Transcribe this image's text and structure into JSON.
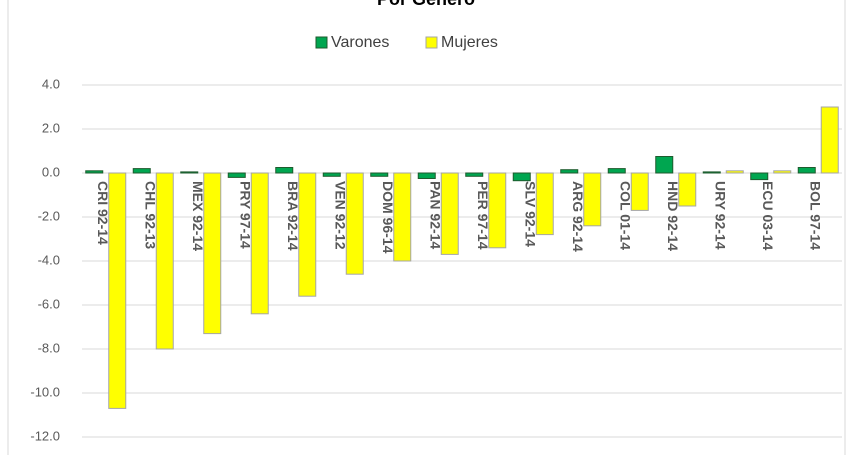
{
  "chart_data": {
    "type": "bar",
    "title": "Por Género",
    "categories": [
      "CRI 92-14",
      "CHL 92-13",
      "MEX 92-14",
      "PRY 97-14",
      "BRA 92-14",
      "VEN 92-12",
      "DOM 96-14",
      "PAN 92-14",
      "PER 97-14",
      "SLV 92-14",
      "ARG 92-14",
      "COL 01-14",
      "HND 92-14",
      "URY 92-14",
      "ECU 03-14",
      "BOL 97-14"
    ],
    "series": [
      {
        "name": "Varones",
        "color": "#00a650",
        "values": [
          0.1,
          0.2,
          0.05,
          -0.2,
          0.25,
          -0.15,
          -0.15,
          -0.25,
          -0.15,
          -0.35,
          0.15,
          0.2,
          0.75,
          0.05,
          -0.3,
          0.25
        ]
      },
      {
        "name": "Mujeres",
        "color": "#ffff00",
        "values": [
          -10.7,
          -8.0,
          -7.3,
          -6.4,
          -5.6,
          -4.6,
          -4.0,
          -3.7,
          -3.4,
          -2.8,
          -2.4,
          -1.7,
          -1.5,
          0.1,
          0.1,
          3.0
        ]
      }
    ],
    "ylim": [
      -12,
      4
    ],
    "yticks": [
      {
        "value": -12,
        "label": "-12.0"
      },
      {
        "value": -10,
        "label": "-10.0"
      },
      {
        "value": -8,
        "label": "-8.0"
      },
      {
        "value": -6,
        "label": "-6.0"
      },
      {
        "value": -4,
        "label": "-4.0"
      },
      {
        "value": -2,
        "label": "-2.0"
      },
      {
        "value": 0,
        "label": "0.0"
      },
      {
        "value": 2,
        "label": "2.0"
      },
      {
        "value": 4,
        "label": "4.0"
      }
    ],
    "grid": true,
    "legend": "top"
  }
}
